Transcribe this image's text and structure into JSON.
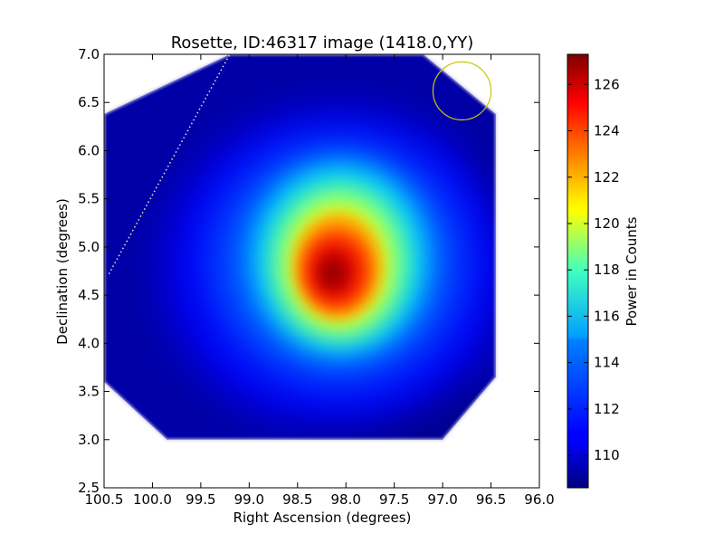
{
  "chart_data": {
    "type": "heatmap",
    "title": "Rosette, ID:46317 image (1418.0,YY)",
    "xlabel": "Right Ascension (degrees)",
    "ylabel": "Declination (degrees)",
    "colorbar_label": "Power in Counts",
    "colormap": "jet",
    "xlim": [
      100.5,
      96.0
    ],
    "ylim": [
      2.5,
      7.0
    ],
    "xticks": [
      {
        "value": 100.5,
        "label": "100.5"
      },
      {
        "value": 100.0,
        "label": "100.0"
      },
      {
        "value": 99.5,
        "label": "99.5"
      },
      {
        "value": 99.0,
        "label": "99.0"
      },
      {
        "value": 98.5,
        "label": "98.5"
      },
      {
        "value": 98.0,
        "label": "98.0"
      },
      {
        "value": 97.5,
        "label": "97.5"
      },
      {
        "value": 97.0,
        "label": "97.0"
      },
      {
        "value": 96.5,
        "label": "96.5"
      },
      {
        "value": 96.0,
        "label": "96.0"
      }
    ],
    "yticks": [
      {
        "value": 2.5,
        "label": "2.5"
      },
      {
        "value": 3.0,
        "label": "3.0"
      },
      {
        "value": 3.5,
        "label": "3.5"
      },
      {
        "value": 4.0,
        "label": "4.0"
      },
      {
        "value": 4.5,
        "label": "4.5"
      },
      {
        "value": 5.0,
        "label": "5.0"
      },
      {
        "value": 5.5,
        "label": "5.5"
      },
      {
        "value": 6.0,
        "label": "6.0"
      },
      {
        "value": 6.5,
        "label": "6.5"
      },
      {
        "value": 7.0,
        "label": "7.0"
      }
    ],
    "colorbar_range": [
      108.6,
      127.3
    ],
    "colorbar_ticks": [
      {
        "value": 110,
        "label": "110"
      },
      {
        "value": 112,
        "label": "112"
      },
      {
        "value": 114,
        "label": "114"
      },
      {
        "value": 116,
        "label": "116"
      },
      {
        "value": 118,
        "label": "118"
      },
      {
        "value": 120,
        "label": "120"
      },
      {
        "value": 122,
        "label": "122"
      },
      {
        "value": 124,
        "label": "124"
      },
      {
        "value": 126,
        "label": "126"
      }
    ],
    "coverage_polygon": [
      [
        99.85,
        3.0
      ],
      [
        97.0,
        3.0
      ],
      [
        96.45,
        3.65
      ],
      [
        96.45,
        6.38
      ],
      [
        97.2,
        7.0
      ],
      [
        99.2,
        7.0
      ],
      [
        100.5,
        6.38
      ],
      [
        100.5,
        3.6
      ]
    ],
    "peak": {
      "ra": 98.1,
      "dec": 4.78,
      "value": 127.3
    },
    "background_value": 109.3,
    "overlays": {
      "circle": {
        "ra": 96.8,
        "dec": 6.62,
        "radius_deg": 0.3,
        "color": "#c8c800"
      },
      "dotted_line": {
        "ra": [
          100.45,
          99.2
        ],
        "dec": [
          4.72,
          7.0
        ],
        "color": "#e8e8c0"
      }
    }
  }
}
